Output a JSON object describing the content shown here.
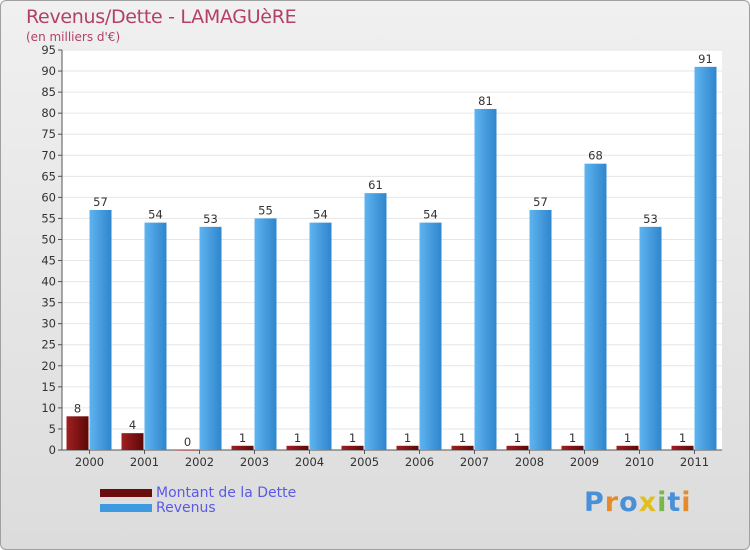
{
  "chart_data": {
    "type": "bar",
    "title": "Revenus/Dette - LAMAGUèRE",
    "subtitle": "(en milliers d'€)",
    "xlabel": "",
    "ylabel": "",
    "ylim": [
      0,
      95
    ],
    "yticks": [
      0,
      5,
      10,
      15,
      20,
      25,
      30,
      35,
      40,
      45,
      50,
      55,
      60,
      65,
      70,
      75,
      80,
      85,
      90,
      95
    ],
    "ytick_labels": [
      "0",
      "5",
      "10",
      "15",
      "20",
      "25",
      "30",
      "35",
      "40",
      "45",
      "50",
      "55",
      "60",
      "65",
      "70",
      "75",
      "80",
      "85",
      "90",
      "95"
    ],
    "categories": [
      "2000",
      "2001",
      "2002",
      "2003",
      "2004",
      "2005",
      "2006",
      "2007",
      "2008",
      "2009",
      "2010",
      "2011"
    ],
    "series": [
      {
        "name": "Montant de la Dette",
        "color": "#7a1010",
        "values": [
          8,
          4,
          0,
          1,
          1,
          1,
          1,
          1,
          1,
          1,
          1,
          1
        ],
        "labels": [
          "8",
          "4",
          "0",
          "1",
          "1",
          "1",
          "1",
          "1",
          "1",
          "1",
          "1",
          "1"
        ]
      },
      {
        "name": "Revenus",
        "color": "#3d9ae0",
        "values": [
          57,
          54,
          53,
          55,
          54,
          61,
          54,
          81,
          57,
          68,
          53,
          91
        ],
        "labels": [
          "57",
          "54",
          "53",
          "55",
          "54",
          "61",
          "54",
          "81",
          "57",
          "68",
          "53",
          "91"
        ]
      }
    ],
    "legend_position": "bottom-left",
    "grid": true
  },
  "legend": {
    "items": [
      {
        "label": "Montant de la Dette",
        "color": "#6b0d0d"
      },
      {
        "label": "Revenus",
        "color": "#3d9ae0"
      }
    ]
  },
  "logo": {
    "letters": [
      "P",
      "r",
      "o",
      "x",
      "i",
      "t",
      "i"
    ],
    "colors": [
      "#4a90d9",
      "#e58a2a",
      "#4a90d9",
      "#e0c020",
      "#78b84a",
      "#4a90d9",
      "#e58a2a"
    ]
  }
}
